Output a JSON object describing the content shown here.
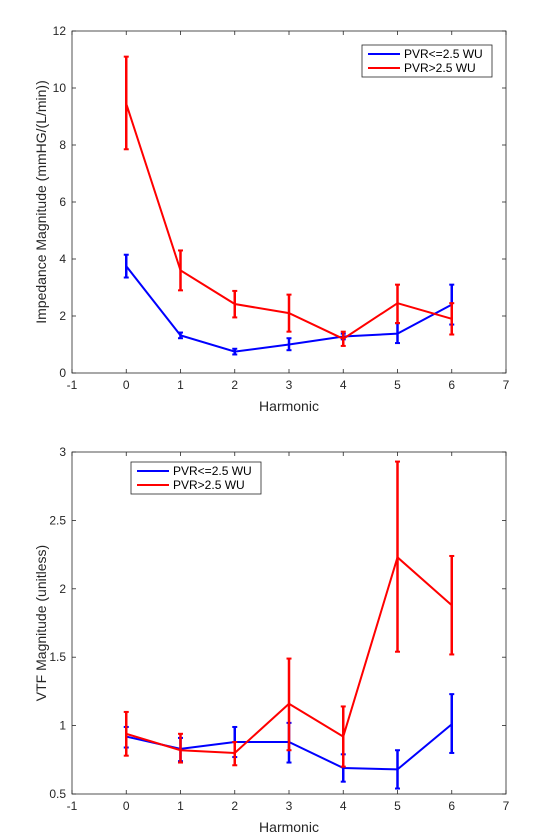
{
  "chart_data": [
    {
      "type": "line",
      "xlabel": "Harmonic",
      "ylabel": "Impedance Magnitude (mmHG/(L/min))",
      "xlim": [
        -1,
        7
      ],
      "ylim": [
        0,
        12
      ],
      "xticks": [
        -1,
        0,
        1,
        2,
        3,
        4,
        5,
        6,
        7
      ],
      "yticks": [
        0,
        2,
        4,
        6,
        8,
        10,
        12
      ],
      "legend_position": "top-right",
      "grid": false,
      "x": [
        0,
        1,
        2,
        3,
        4,
        5,
        6
      ],
      "series": [
        {
          "name": "PVR<=2.5 WU",
          "color": "#0000ff",
          "values": [
            3.75,
            1.32,
            0.75,
            1.0,
            1.28,
            1.38,
            2.4
          ],
          "err_low": [
            3.35,
            1.22,
            0.65,
            0.8,
            1.18,
            1.05,
            1.7
          ],
          "err_high": [
            4.15,
            1.42,
            0.85,
            1.22,
            1.38,
            1.75,
            3.1
          ]
        },
        {
          "name": "PVR>2.5 WU",
          "color": "#ff0000",
          "values": [
            9.45,
            3.6,
            2.42,
            2.1,
            1.2,
            2.45,
            1.9
          ],
          "err_low": [
            7.85,
            2.9,
            1.95,
            1.45,
            0.95,
            1.75,
            1.35
          ],
          "err_high": [
            11.1,
            4.3,
            2.88,
            2.75,
            1.45,
            3.1,
            2.45
          ]
        }
      ]
    },
    {
      "type": "line",
      "xlabel": "Harmonic",
      "ylabel": "VTF Magnitude (unitless)",
      "xlim": [
        -1,
        7
      ],
      "ylim": [
        0.5,
        3
      ],
      "xticks": [
        -1,
        0,
        1,
        2,
        3,
        4,
        5,
        6,
        7
      ],
      "yticks": [
        0.5,
        1,
        1.5,
        2,
        2.5,
        3
      ],
      "legend_position": "top-left",
      "grid": false,
      "x": [
        0,
        1,
        2,
        3,
        4,
        5,
        6
      ],
      "series": [
        {
          "name": "PVR<=2.5 WU",
          "color": "#0000ff",
          "values": [
            0.92,
            0.83,
            0.88,
            0.88,
            0.69,
            0.68,
            1.01
          ],
          "err_low": [
            0.84,
            0.74,
            0.77,
            0.73,
            0.59,
            0.54,
            0.8
          ],
          "err_high": [
            0.99,
            0.91,
            0.99,
            1.02,
            0.79,
            0.82,
            1.23
          ]
        },
        {
          "name": "PVR>2.5 WU",
          "color": "#ff0000",
          "values": [
            0.94,
            0.82,
            0.8,
            1.16,
            0.92,
            2.23,
            1.88
          ],
          "err_low": [
            0.78,
            0.73,
            0.71,
            0.82,
            0.7,
            1.54,
            1.52
          ],
          "err_high": [
            1.1,
            0.94,
            0.88,
            1.49,
            1.14,
            2.93,
            2.24
          ]
        }
      ]
    }
  ]
}
